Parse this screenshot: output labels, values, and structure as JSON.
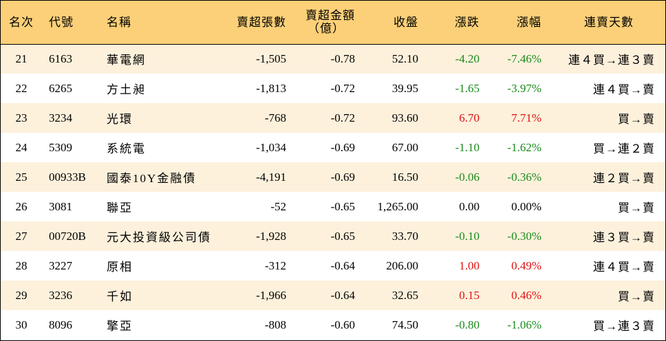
{
  "headers": {
    "rank": "名次",
    "code": "代號",
    "name": "名稱",
    "net_sell_volume": "賣超張數",
    "net_sell_amount_line1": "賣超金額",
    "net_sell_amount_line2": "（億）",
    "close": "收盤",
    "change": "漲跌",
    "change_pct": "漲幅",
    "streak": "連賣天數"
  },
  "colors": {
    "header_bg": "#fcd078",
    "stripe_bg": "#fdf1dc",
    "up": "#e01010",
    "down": "#1a8a1a"
  },
  "rows": [
    {
      "rank": "21",
      "code": "6163",
      "name": "華電網",
      "vol": "-1,505",
      "amt": "-0.78",
      "close": "52.10",
      "chg": "-4.20",
      "pct": "-7.46%",
      "dir": "neg",
      "days": "連４買→連３賣"
    },
    {
      "rank": "22",
      "code": "6265",
      "name": "方土昶",
      "vol": "-1,813",
      "amt": "-0.72",
      "close": "39.95",
      "chg": "-1.65",
      "pct": "-3.97%",
      "dir": "neg",
      "days": "連４買→賣"
    },
    {
      "rank": "23",
      "code": "3234",
      "name": "光環",
      "vol": "-768",
      "amt": "-0.72",
      "close": "93.60",
      "chg": "6.70",
      "pct": "7.71%",
      "dir": "pos",
      "days": "買→賣"
    },
    {
      "rank": "24",
      "code": "5309",
      "name": "系統電",
      "vol": "-1,034",
      "amt": "-0.69",
      "close": "67.00",
      "chg": "-1.10",
      "pct": "-1.62%",
      "dir": "neg",
      "days": "買→連２賣"
    },
    {
      "rank": "25",
      "code": "00933B",
      "name": "國泰10Y金融債",
      "vol": "-4,191",
      "amt": "-0.69",
      "close": "16.50",
      "chg": "-0.06",
      "pct": "-0.36%",
      "dir": "neg",
      "days": "連２買→賣"
    },
    {
      "rank": "26",
      "code": "3081",
      "name": "聯亞",
      "vol": "-52",
      "amt": "-0.65",
      "close": "1,265.00",
      "chg": "0.00",
      "pct": "0.00%",
      "dir": "zero",
      "days": "買→賣"
    },
    {
      "rank": "27",
      "code": "00720B",
      "name": "元大投資級公司債",
      "vol": "-1,928",
      "amt": "-0.65",
      "close": "33.70",
      "chg": "-0.10",
      "pct": "-0.30%",
      "dir": "neg",
      "days": "連３買→賣"
    },
    {
      "rank": "28",
      "code": "3227",
      "name": "原相",
      "vol": "-312",
      "amt": "-0.64",
      "close": "206.00",
      "chg": "1.00",
      "pct": "0.49%",
      "dir": "pos",
      "days": "連４買→賣"
    },
    {
      "rank": "29",
      "code": "3236",
      "name": "千如",
      "vol": "-1,966",
      "amt": "-0.64",
      "close": "32.65",
      "chg": "0.15",
      "pct": "0.46%",
      "dir": "pos",
      "days": "買→賣"
    },
    {
      "rank": "30",
      "code": "8096",
      "name": "擎亞",
      "vol": "-808",
      "amt": "-0.60",
      "close": "74.50",
      "chg": "-0.80",
      "pct": "-1.06%",
      "dir": "neg",
      "days": "買→連３賣"
    }
  ]
}
